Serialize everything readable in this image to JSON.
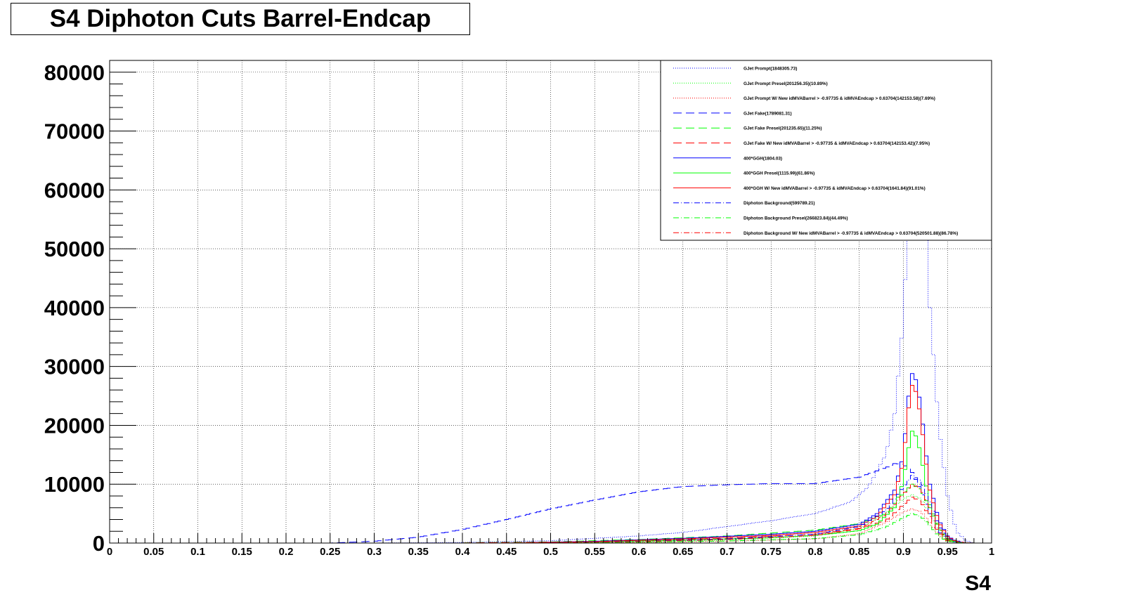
{
  "chart_data": {
    "type": "line",
    "title": "S4 Diphoton Cuts Barrel-Endcap",
    "xlabel": "S4",
    "ylabel": "",
    "xlim": [
      0,
      1
    ],
    "ylim": [
      0,
      82000
    ],
    "grid": true,
    "legend_position": "top-right",
    "x_ticks": [
      "0",
      "0.05",
      "0.1",
      "0.15",
      "0.2",
      "0.25",
      "0.3",
      "0.35",
      "0.4",
      "0.45",
      "0.5",
      "0.55",
      "0.6",
      "0.65",
      "0.7",
      "0.75",
      "0.8",
      "0.85",
      "0.9",
      "0.95",
      "1"
    ],
    "y_ticks": [
      "0",
      "10000",
      "20000",
      "30000",
      "40000",
      "50000",
      "60000",
      "70000",
      "80000"
    ],
    "series": [
      {
        "name": "GJet Prompt(1848305.73)",
        "color": "#0000ff",
        "style": "dotted",
        "x": [
          0.3,
          0.4,
          0.5,
          0.6,
          0.65,
          0.7,
          0.75,
          0.8,
          0.84,
          0.86,
          0.88,
          0.89,
          0.9,
          0.905,
          0.91,
          0.915,
          0.92,
          0.925,
          0.93,
          0.94,
          0.95,
          0.96,
          0.97,
          0.98
        ],
        "y": [
          0,
          100,
          400,
          1200,
          1800,
          2800,
          3800,
          5000,
          7000,
          9500,
          15000,
          22000,
          38000,
          55000,
          70000,
          75000,
          72000,
          58000,
          40000,
          20000,
          8000,
          2000,
          500,
          0
        ]
      },
      {
        "name": "GJet Prompt Presel(201256.35)(10.89%)",
        "color": "#00ff00",
        "style": "dotted",
        "x": [
          0.5,
          0.6,
          0.7,
          0.8,
          0.85,
          0.88,
          0.9,
          0.91,
          0.92,
          0.93,
          0.94,
          0.95,
          0.97
        ],
        "y": [
          50,
          200,
          500,
          1200,
          2500,
          5000,
          7500,
          8200,
          7500,
          5000,
          2000,
          500,
          0
        ]
      },
      {
        "name": "GJet Prompt W/ New idMVABarrel > -0.97735 & idMVAEndcap > 0.63704(142153.58)(7.69%)",
        "color": "#ff0000",
        "style": "dotted",
        "x": [
          0.5,
          0.6,
          0.7,
          0.8,
          0.85,
          0.88,
          0.9,
          0.91,
          0.92,
          0.93,
          0.94,
          0.95,
          0.97
        ],
        "y": [
          30,
          100,
          300,
          700,
          1600,
          3500,
          5300,
          5800,
          5300,
          3500,
          1400,
          300,
          0
        ]
      },
      {
        "name": "GJet Fake(1789081.31)",
        "color": "#0000ff",
        "style": "dashed",
        "x": [
          0.25,
          0.3,
          0.35,
          0.4,
          0.45,
          0.5,
          0.55,
          0.6,
          0.65,
          0.7,
          0.75,
          0.8,
          0.85,
          0.88,
          0.89,
          0.9,
          0.91,
          0.92,
          0.93,
          0.94,
          0.95,
          0.96,
          0.97
        ],
        "y": [
          0,
          300,
          1000,
          2300,
          4000,
          5800,
          7300,
          8700,
          9600,
          9900,
          10100,
          10100,
          11200,
          12800,
          13500,
          13400,
          12000,
          9000,
          5000,
          2000,
          600,
          100,
          0
        ]
      },
      {
        "name": "GJet Fake Presel(201235.65)(11.25%)",
        "color": "#00ff00",
        "style": "dashed",
        "x": [
          0.4,
          0.5,
          0.6,
          0.7,
          0.8,
          0.85,
          0.88,
          0.9,
          0.91,
          0.92,
          0.93,
          0.94,
          0.95,
          0.97
        ],
        "y": [
          50,
          200,
          600,
          1200,
          2200,
          3300,
          5000,
          8500,
          10000,
          9000,
          6000,
          2500,
          600,
          0
        ]
      },
      {
        "name": "GJet Fake W/ New idMVABarrel > -0.97735 & idMVAEndcap > 0.63704(142153.42)(7.95%)",
        "color": "#ff0000",
        "style": "dashed",
        "x": [
          0.4,
          0.5,
          0.6,
          0.7,
          0.8,
          0.85,
          0.88,
          0.9,
          0.91,
          0.92,
          0.93,
          0.94,
          0.95,
          0.97
        ],
        "y": [
          30,
          150,
          400,
          800,
          1500,
          2500,
          3800,
          6500,
          7800,
          7000,
          4500,
          1800,
          400,
          0
        ]
      },
      {
        "name": "400*GGH(1804.03)",
        "color": "#0000ff",
        "style": "solid",
        "x": [
          0.45,
          0.55,
          0.65,
          0.75,
          0.8,
          0.85,
          0.87,
          0.89,
          0.9,
          0.905,
          0.91,
          0.915,
          0.92,
          0.925,
          0.93,
          0.94,
          0.95,
          0.96,
          0.97,
          0.98
        ],
        "y": [
          0,
          300,
          800,
          1500,
          2000,
          3200,
          5000,
          9000,
          15000,
          24000,
          28800,
          27500,
          23000,
          16000,
          10000,
          4000,
          1200,
          300,
          50,
          0
        ]
      },
      {
        "name": "400*GGH Presel(1115.99)(61.86%)",
        "color": "#00ff00",
        "style": "solid",
        "x": [
          0.45,
          0.55,
          0.65,
          0.75,
          0.8,
          0.85,
          0.87,
          0.89,
          0.9,
          0.905,
          0.91,
          0.915,
          0.92,
          0.925,
          0.93,
          0.94,
          0.95,
          0.96,
          0.97,
          0.98
        ],
        "y": [
          0,
          200,
          500,
          900,
          1300,
          2100,
          3200,
          6000,
          10500,
          15500,
          19000,
          18000,
          15000,
          10500,
          6500,
          2600,
          800,
          200,
          30,
          0
        ]
      },
      {
        "name": "400*GGH W/ New idMVABarrel > -0.97735 & idMVAEndcap > 0.63704(1641.84)(91.01%)",
        "color": "#ff0000",
        "style": "solid",
        "x": [
          0.45,
          0.55,
          0.65,
          0.75,
          0.8,
          0.85,
          0.87,
          0.89,
          0.9,
          0.905,
          0.91,
          0.915,
          0.92,
          0.925,
          0.93,
          0.94,
          0.95,
          0.96,
          0.97,
          0.98
        ],
        "y": [
          0,
          250,
          700,
          1300,
          1800,
          2900,
          4500,
          8200,
          13800,
          22000,
          26800,
          25500,
          21000,
          14500,
          9000,
          3600,
          1100,
          250,
          40,
          0
        ]
      },
      {
        "name": "Diphoton Background(599789.21)",
        "color": "#0000ff",
        "style": "dashdot",
        "x": [
          0.5,
          0.6,
          0.7,
          0.8,
          0.85,
          0.88,
          0.9,
          0.91,
          0.92,
          0.93,
          0.94,
          0.95,
          0.97
        ],
        "y": [
          100,
          300,
          700,
          1500,
          2800,
          5500,
          9500,
          11500,
          10500,
          7000,
          3000,
          800,
          0
        ]
      },
      {
        "name": "Diphoton Background Presel(266823.84)(44.49%)",
        "color": "#00ff00",
        "style": "dashdot",
        "x": [
          0.5,
          0.6,
          0.7,
          0.8,
          0.85,
          0.88,
          0.9,
          0.91,
          0.92,
          0.93,
          0.94,
          0.95,
          0.97
        ],
        "y": [
          40,
          150,
          350,
          750,
          1400,
          2700,
          4300,
          5000,
          4500,
          3000,
          1200,
          300,
          0
        ]
      },
      {
        "name": "Diphoton Background W/ New idMVABarrel > -0.97735 & idMVAEndcap > 0.63704(520501.88)(86.78%)",
        "color": "#ff0000",
        "style": "dashdot",
        "x": [
          0.5,
          0.6,
          0.7,
          0.8,
          0.85,
          0.88,
          0.9,
          0.91,
          0.92,
          0.93,
          0.94,
          0.95,
          0.97
        ],
        "y": [
          80,
          250,
          600,
          1300,
          2400,
          4800,
          8300,
          10000,
          9200,
          6100,
          2600,
          700,
          0
        ]
      }
    ]
  }
}
